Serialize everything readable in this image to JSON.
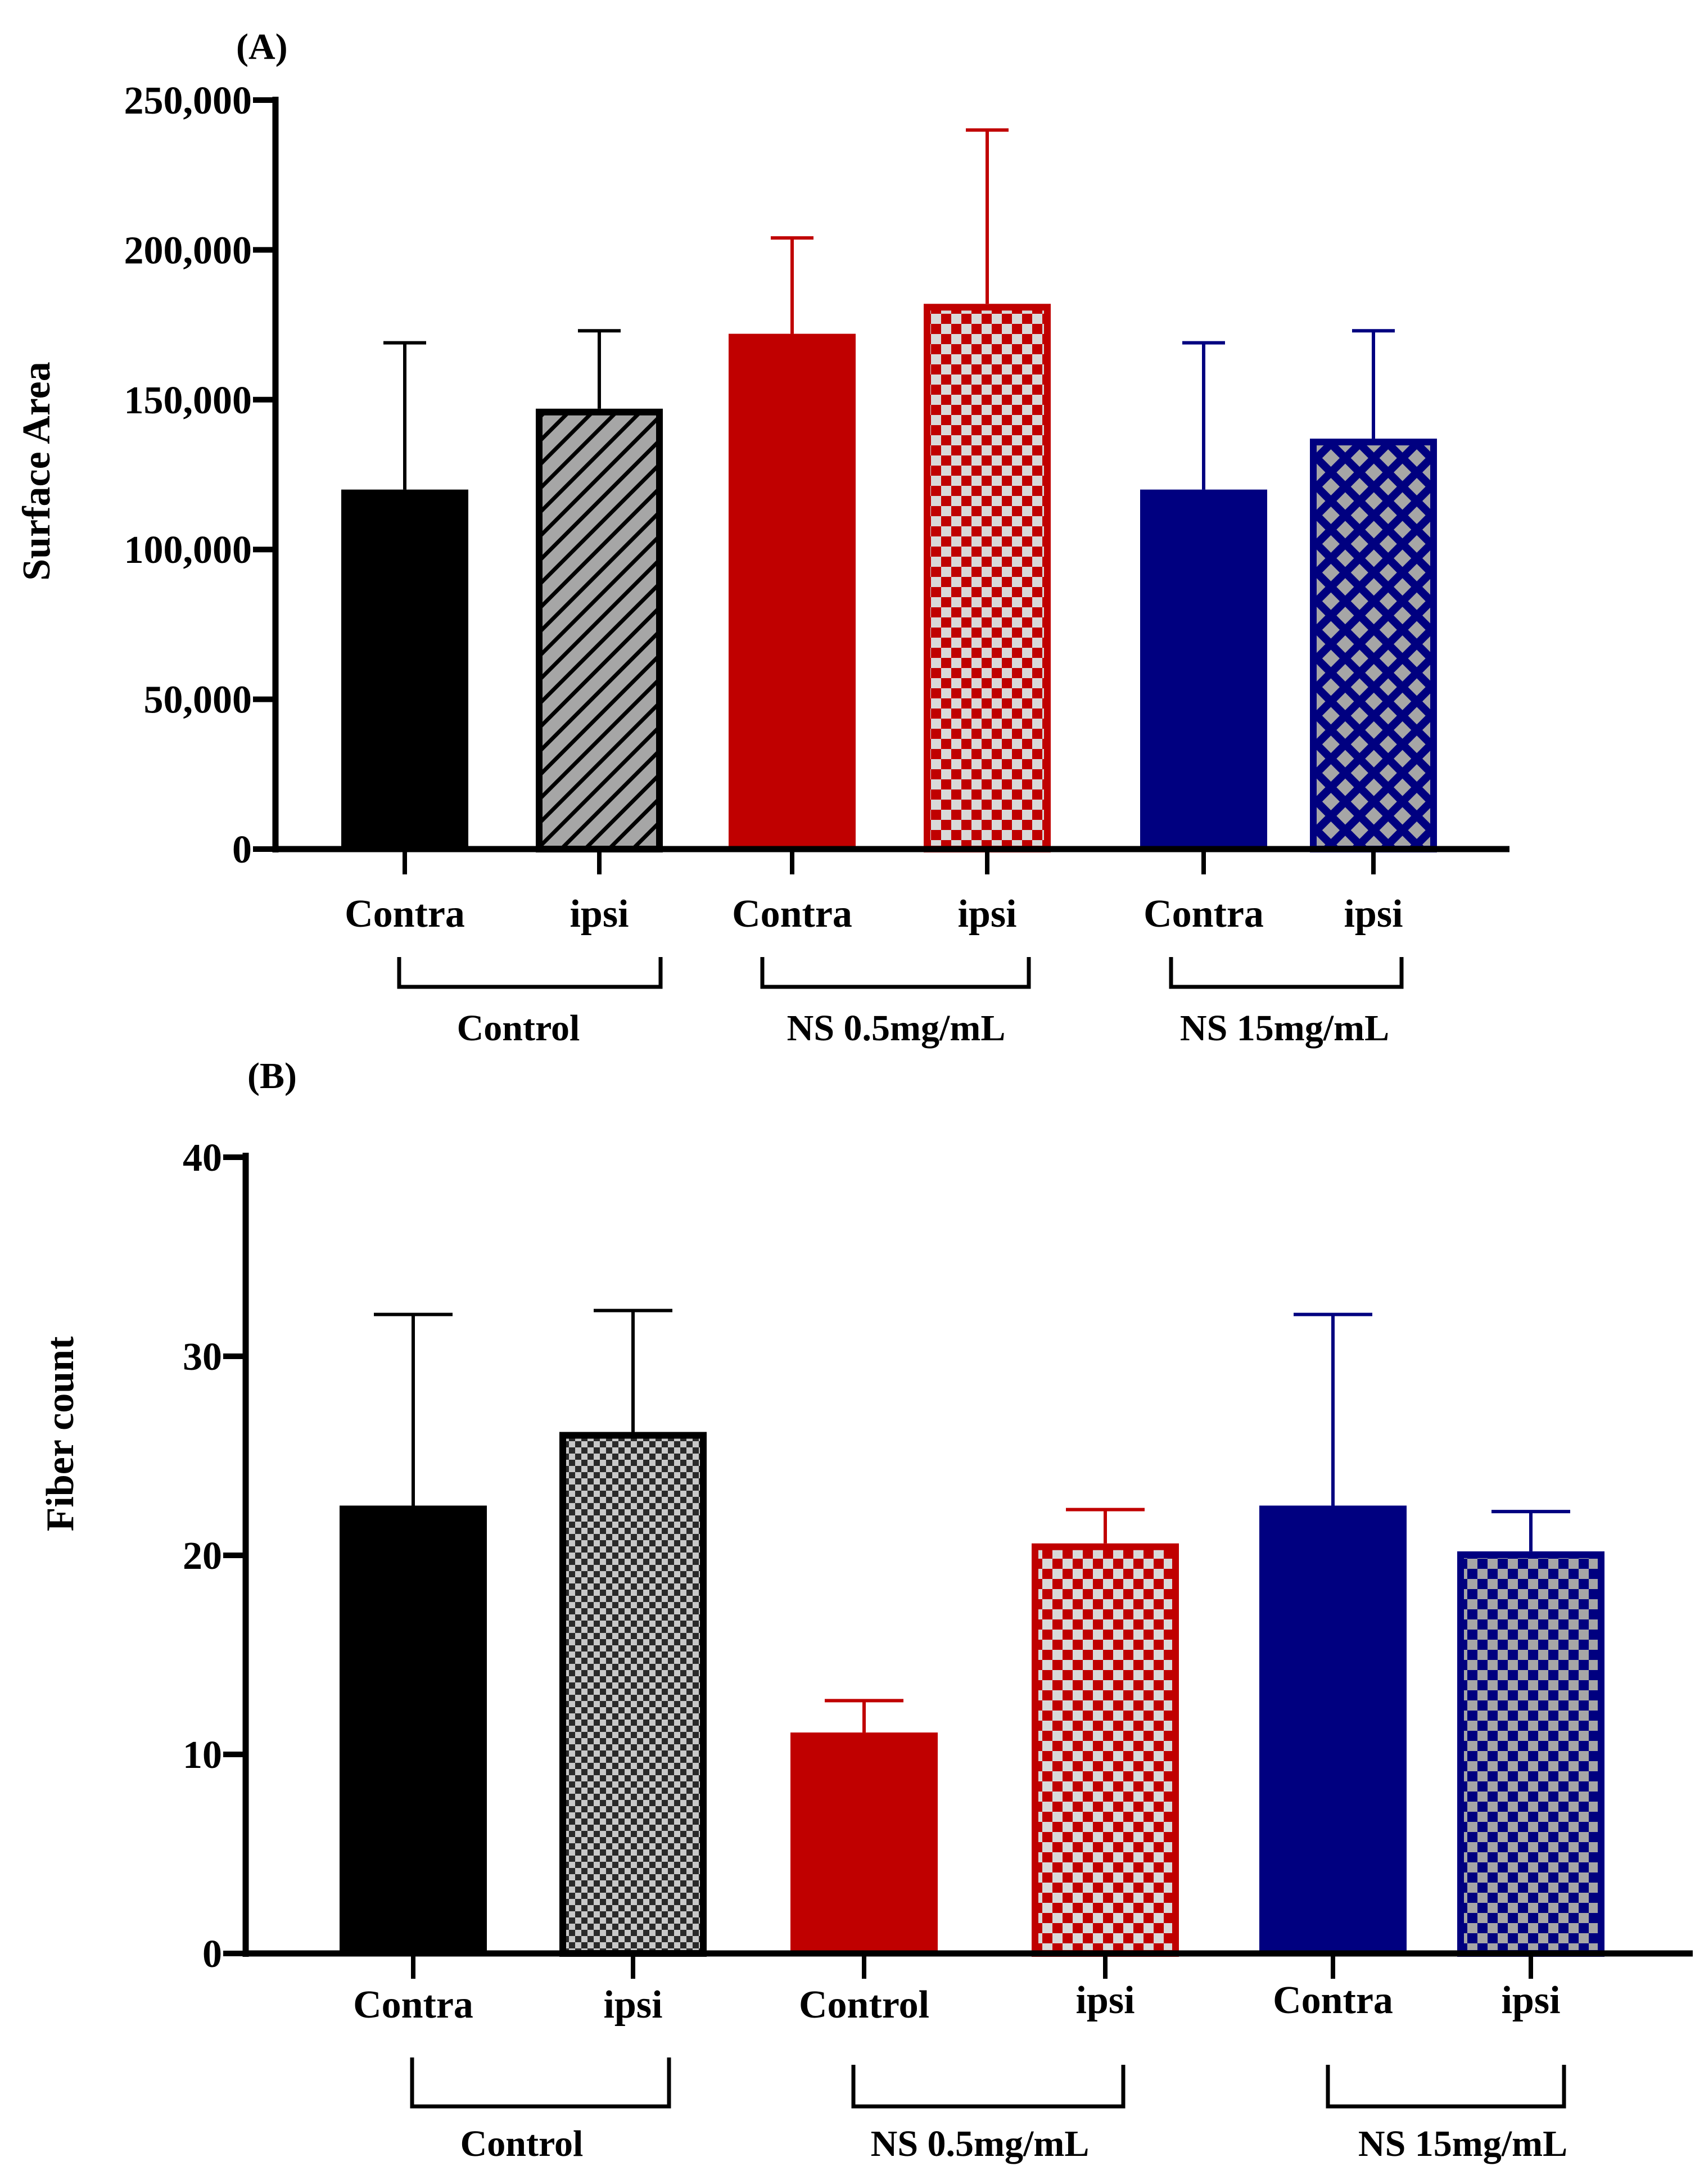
{
  "chart_data": [
    {
      "panel_label": "(A)",
      "type": "bar",
      "ylabel": "Surface Area",
      "ylim": [
        0,
        250000
      ],
      "yticks": [
        0,
        50000,
        100000,
        150000,
        200000,
        250000
      ],
      "ytick_labels": [
        "0",
        "50,000",
        "100,000",
        "150,000",
        "200,000",
        "250,000"
      ],
      "categories": [
        "Contra",
        "ipsi",
        "Contra",
        "ipsi",
        "Contra",
        "ipsi"
      ],
      "groups": [
        {
          "name": "Control",
          "bars": [
            0,
            1
          ]
        },
        {
          "name": "NS 0.5mg/mL",
          "bars": [
            2,
            3
          ]
        },
        {
          "name": "NS 15mg/mL",
          "bars": [
            4,
            5
          ]
        }
      ],
      "values": [
        120000,
        147000,
        172000,
        182000,
        120000,
        137000
      ],
      "errors": [
        49000,
        26000,
        32000,
        58000,
        49000,
        36000
      ],
      "colors": [
        "#000000",
        "#000000",
        "#c00000",
        "#c00000",
        "#000080",
        "#000080"
      ],
      "patterns": [
        "solid",
        "diagonal-hatch",
        "solid",
        "checker",
        "solid",
        "diamond"
      ]
    },
    {
      "panel_label": "(B)",
      "type": "bar",
      "ylabel": "Fiber count",
      "ylim": [
        0,
        40
      ],
      "yticks": [
        0,
        10,
        20,
        30,
        40
      ],
      "ytick_labels": [
        "0",
        "10",
        "20",
        "30",
        "40"
      ],
      "categories": [
        "Contra",
        "ipsi",
        "Control",
        "ipsi",
        "Contra",
        "ipsi"
      ],
      "groups": [
        {
          "name": "Control",
          "bars": [
            0,
            1
          ]
        },
        {
          "name": "NS 0.5mg/mL",
          "bars": [
            2,
            3
          ]
        },
        {
          "name": "NS 15mg/mL",
          "bars": [
            4,
            5
          ]
        }
      ],
      "values": [
        22.5,
        26.2,
        11.1,
        20.6,
        22.5,
        20.2
      ],
      "errors": [
        9.6,
        6.1,
        1.6,
        1.7,
        9.6,
        2.0
      ],
      "colors": [
        "#000000",
        "#000000",
        "#c00000",
        "#c00000",
        "#000080",
        "#000080"
      ],
      "patterns": [
        "solid",
        "fine-checker",
        "solid",
        "checker",
        "solid",
        "checker"
      ]
    }
  ]
}
